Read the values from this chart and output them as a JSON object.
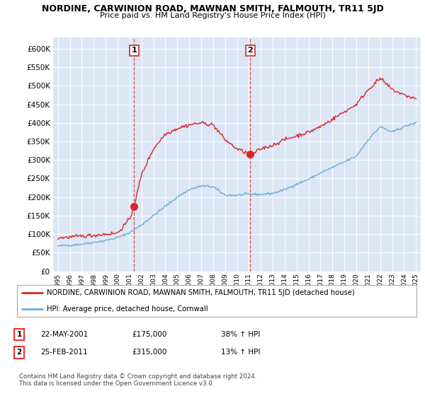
{
  "title": "NORDINE, CARWINION ROAD, MAWNAN SMITH, FALMOUTH, TR11 5JD",
  "subtitle": "Price paid vs. HM Land Registry's House Price Index (HPI)",
  "legend_line1": "NORDINE, CARWINION ROAD, MAWNAN SMITH, FALMOUTH, TR11 5JD (detached house)",
  "legend_line2": "HPI: Average price, detached house, Cornwall",
  "sale1_date": "22-MAY-2001",
  "sale1_price": "£175,000",
  "sale1_hpi": "38% ↑ HPI",
  "sale2_date": "25-FEB-2011",
  "sale2_price": "£315,000",
  "sale2_hpi": "13% ↑ HPI",
  "footer": "Contains HM Land Registry data © Crown copyright and database right 2024.\nThis data is licensed under the Open Government Licence v3.0.",
  "hpi_color": "#6baed6",
  "price_color": "#d62728",
  "background_color": "#dce6f5",
  "grid_color": "#c8d4e8",
  "ylim": [
    0,
    630000
  ],
  "yticks": [
    0,
    50000,
    100000,
    150000,
    200000,
    250000,
    300000,
    350000,
    400000,
    450000,
    500000,
    550000,
    600000
  ],
  "sale1_year": 2001.38,
  "sale1_value": 175000,
  "sale2_year": 2011.12,
  "sale2_value": 315000,
  "xmin": 1994.6,
  "xmax": 2025.4
}
